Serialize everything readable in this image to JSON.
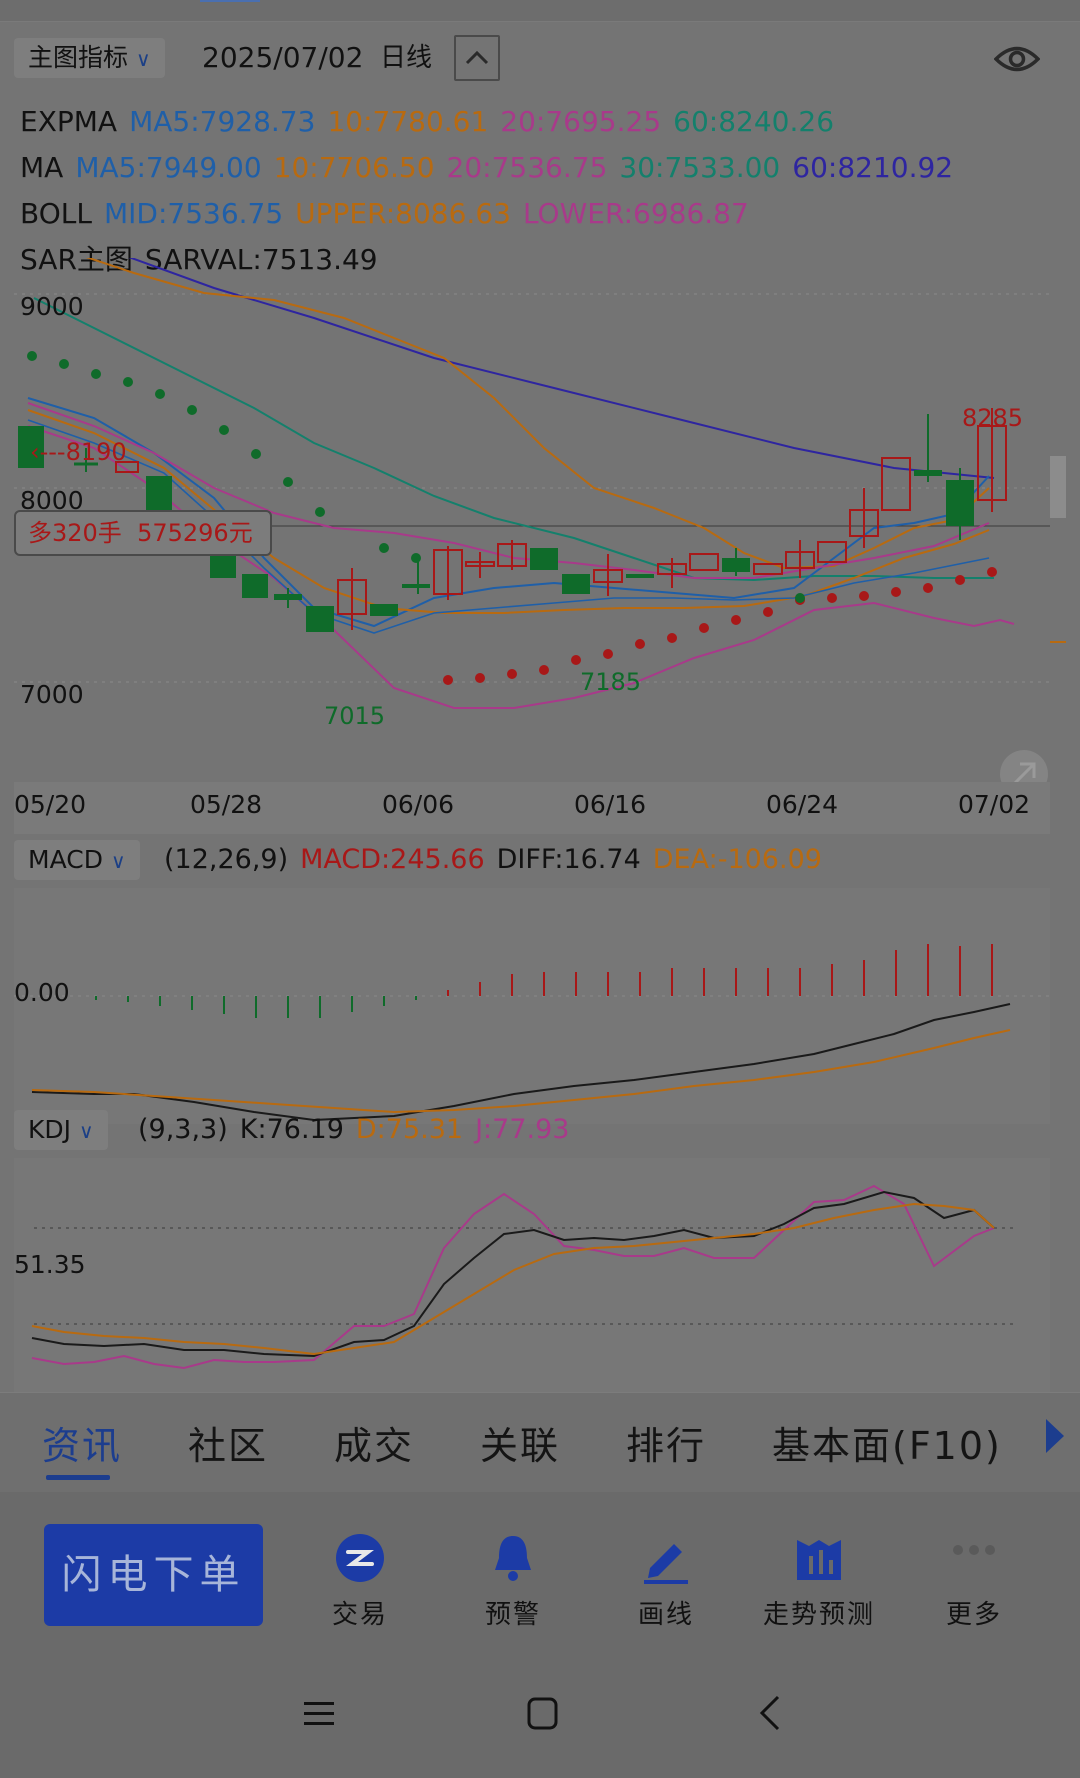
{
  "main_chart": {
    "indicator_dropdown": "主图指标",
    "date": "2025/07/02",
    "period": "日线",
    "expma": {
      "name": "EXPMA",
      "ma5": "MA5:7928.73",
      "ma10": "10:7780.61",
      "ma20": "20:7695.25",
      "ma60": "60:8240.26"
    },
    "ma": {
      "name": "MA",
      "ma5": "MA5:7949.00",
      "ma10": "10:7706.50",
      "ma20": "20:7536.75",
      "ma30": "30:7533.00",
      "ma60": "60:8210.92"
    },
    "boll": {
      "name": "BOLL",
      "mid": "MID:7536.75",
      "upper": "UPPER:8086.63",
      "lower": "LOWER:6986.87"
    },
    "sar": {
      "name": "SAR主图",
      "sarval": "SARVAL:7513.49"
    },
    "y_labels": [
      "9000",
      "8000",
      "7000"
    ],
    "x_labels": [
      "05/20",
      "05/28",
      "06/06",
      "06/16",
      "06/24",
      "07/02"
    ],
    "price_tag_high": "8285",
    "price_tag_8190": "8190",
    "price_tag_7015": "7015",
    "price_tag_7185": "7185",
    "position_box": {
      "side": "多320手",
      "value": "575296元"
    }
  },
  "macd_panel": {
    "dropdown": "MACD",
    "params": "(12,26,9)",
    "macd": "MACD:245.66",
    "diff": "DIFF:16.74",
    "dea": "DEA:-106.09",
    "zero_label": "0.00"
  },
  "kdj_panel": {
    "dropdown": "KDJ",
    "params": "(9,3,3)",
    "k": "K:76.19",
    "d": "D:75.31",
    "j": "J:77.93",
    "mid_label": "51.35"
  },
  "tabs": [
    "资讯",
    "社区",
    "成交",
    "关联",
    "排行",
    "基本面(F10)"
  ],
  "toolbar": {
    "flash_order": "闪电下单",
    "items": [
      {
        "label": "交易",
        "icon": "trade-icon"
      },
      {
        "label": "预警",
        "icon": "bell-icon"
      },
      {
        "label": "画线",
        "icon": "pen-icon"
      },
      {
        "label": "走势预测",
        "icon": "forecast-icon"
      },
      {
        "label": "更多",
        "icon": "more-icon"
      }
    ]
  },
  "colors": {
    "red": "#a81818",
    "green": "#0f6b2a",
    "blue": "#1f5fa8",
    "orange": "#b86a10",
    "magenta": "#a83a8a",
    "teal": "#14806c",
    "purple": "#2e25a0",
    "accent": "#1c3d8e"
  }
}
